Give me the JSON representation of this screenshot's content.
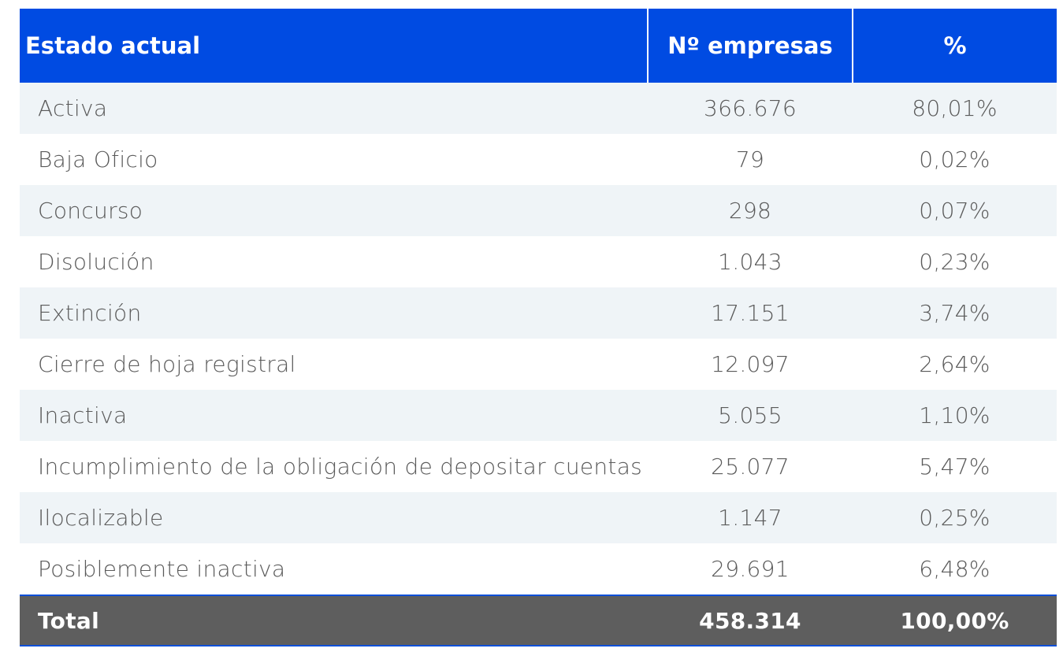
{
  "headers": {
    "estado": "Estado actual",
    "empresas": "Nº empresas",
    "pct": "%"
  },
  "rows": [
    {
      "estado": "Activa",
      "empresas": "366.676",
      "pct": "80,01%"
    },
    {
      "estado": "Baja Oficio",
      "empresas": "79",
      "pct": "0,02%"
    },
    {
      "estado": "Concurso",
      "empresas": "298",
      "pct": "0,07%"
    },
    {
      "estado": "Disolución",
      "empresas": "1.043",
      "pct": "0,23%"
    },
    {
      "estado": "Extinción",
      "empresas": "17.151",
      "pct": "3,74%"
    },
    {
      "estado": "Cierre de hoja registral",
      "empresas": "12.097",
      "pct": "2,64%"
    },
    {
      "estado": "Inactiva",
      "empresas": "5.055",
      "pct": "1,10%"
    },
    {
      "estado": "Incumplimiento de la obligación de depositar cuentas",
      "empresas": "25.077",
      "pct": "5,47%"
    },
    {
      "estado": "Ilocalizable",
      "empresas": "1.147",
      "pct": "0,25%"
    },
    {
      "estado": "Posiblemente inactiva",
      "empresas": "29.691",
      "pct": "6,48%"
    }
  ],
  "total": {
    "estado": "Total",
    "empresas": "458.314",
    "pct": "100,00%"
  },
  "colors": {
    "header": "#004be2",
    "stripe": "#eff4f7",
    "total": "#5e5e5e"
  }
}
